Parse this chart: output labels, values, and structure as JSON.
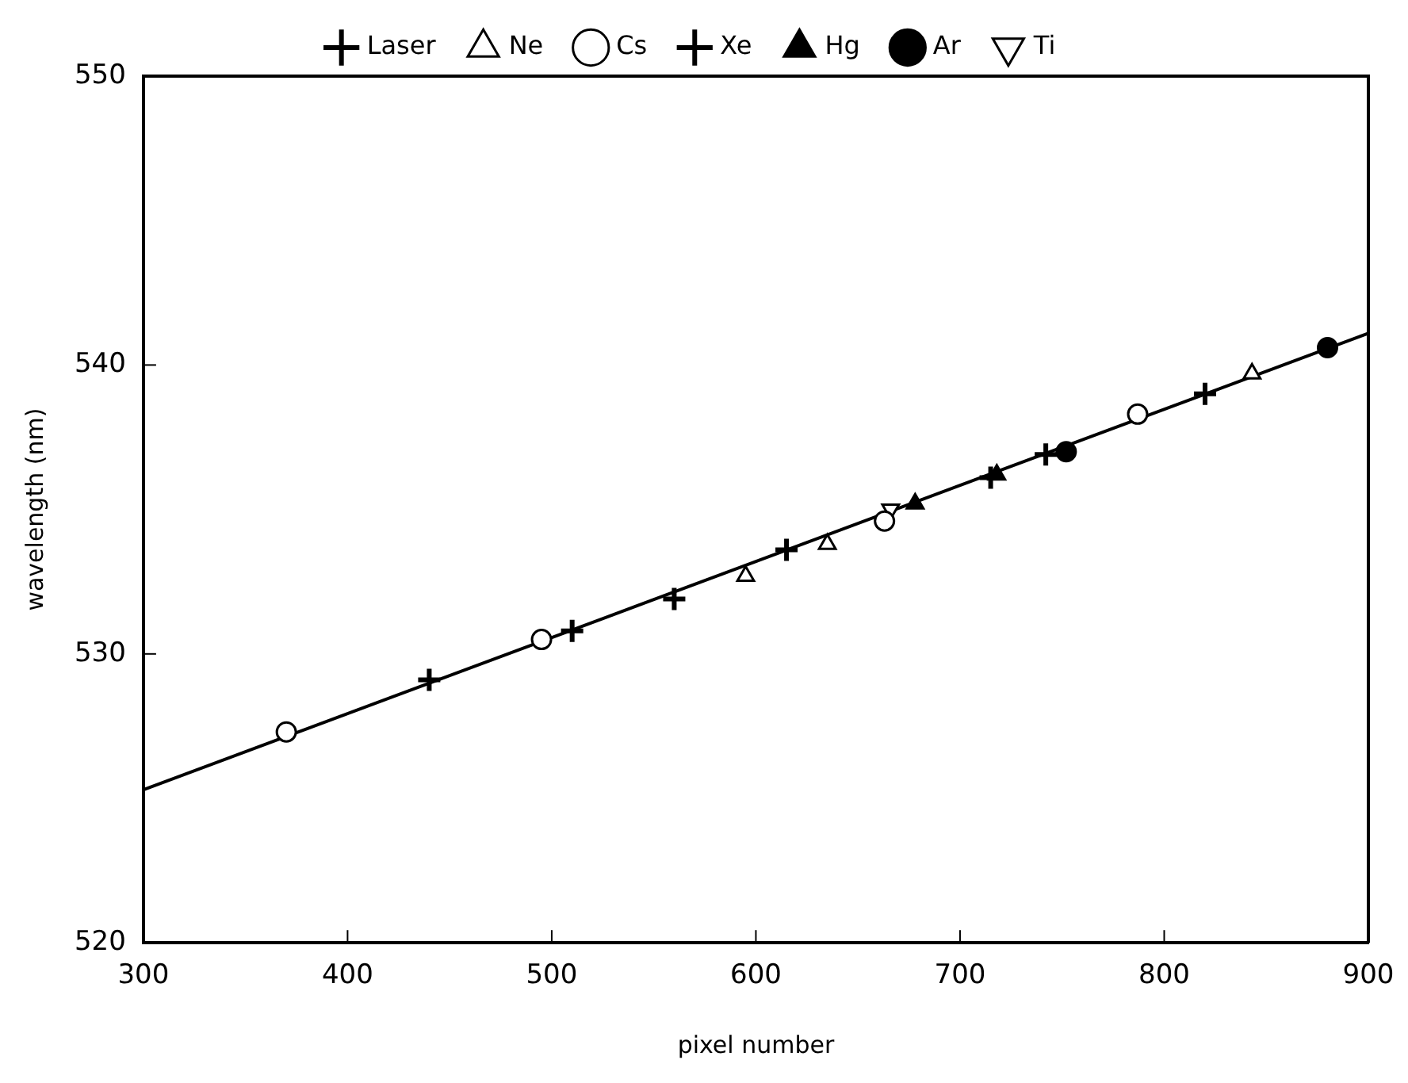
{
  "chart_data": {
    "type": "scatter",
    "xlabel": "pixel number",
    "ylabel": "wavelength (nm)",
    "xlim": [
      300,
      900
    ],
    "ylim": [
      520,
      550
    ],
    "xticks": [
      300,
      400,
      500,
      600,
      700,
      800,
      900
    ],
    "yticks": [
      520,
      530,
      540,
      550
    ],
    "grid": false,
    "legend": "top",
    "series": [
      {
        "name": "Laser",
        "color": "#000000",
        "marker": "cross",
        "x": [
          560
        ],
        "values": [
          531.9
        ]
      },
      {
        "name": "Ne",
        "color": "#ffffff",
        "marker": "triangle",
        "x": [
          595,
          635,
          843
        ],
        "values": [
          532.7,
          533.8,
          539.7
        ]
      },
      {
        "name": "Cs",
        "color": "#ffffff",
        "marker": "circle",
        "x": [
          370,
          495,
          663,
          787
        ],
        "values": [
          527.3,
          530.5,
          534.6,
          538.3
        ]
      },
      {
        "name": "Xe",
        "color": "#000000",
        "marker": "cross",
        "x": [
          440,
          510,
          615,
          715,
          742,
          820
        ],
        "values": [
          529.1,
          530.8,
          533.6,
          536.1,
          536.9,
          539.0
        ]
      },
      {
        "name": "Hg",
        "color": "#000000",
        "marker": "triangle",
        "x": [
          678,
          718
        ],
        "values": [
          535.2,
          536.2
        ]
      },
      {
        "name": "Ar",
        "color": "#000000",
        "marker": "circle",
        "x": [
          752,
          880
        ],
        "values": [
          537.0,
          540.6
        ]
      },
      {
        "name": "Ti",
        "color": "#ffffff",
        "marker": "triangle-down",
        "x": [
          666
        ],
        "values": [
          535.0
        ]
      },
      {
        "type": "line",
        "color": "#000000",
        "marker": "none",
        "x": [
          300,
          900
        ],
        "values": [
          525.3,
          541.1
        ]
      }
    ]
  }
}
